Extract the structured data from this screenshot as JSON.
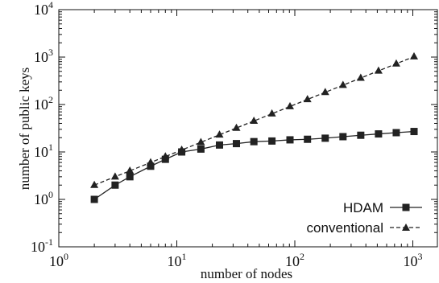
{
  "chart_data": {
    "type": "line",
    "title": "",
    "xlabel": "number of nodes",
    "ylabel": "number of public keys",
    "xscale": "log",
    "yscale": "log",
    "xlim": [
      1,
      2000
    ],
    "ylim": [
      0.1,
      10000
    ],
    "x_ticks": [
      {
        "base": "10",
        "exp": "0",
        "value": 1
      },
      {
        "base": "10",
        "exp": "1",
        "value": 10
      },
      {
        "base": "10",
        "exp": "2",
        "value": 100
      },
      {
        "base": "10",
        "exp": "3",
        "value": 1000
      }
    ],
    "y_ticks": [
      {
        "base": "10",
        "exp": "-1",
        "value": 0.1
      },
      {
        "base": "10",
        "exp": "0",
        "value": 1
      },
      {
        "base": "10",
        "exp": "1",
        "value": 10
      },
      {
        "base": "10",
        "exp": "2",
        "value": 100
      },
      {
        "base": "10",
        "exp": "3",
        "value": 1000
      },
      {
        "base": "10",
        "exp": "4",
        "value": 10000
      }
    ],
    "grid": false,
    "legend_position": "bottom-right",
    "series": [
      {
        "name": "HDAM",
        "marker": "square",
        "line_style": "solid",
        "color": "#222222",
        "x": [
          2,
          3,
          4,
          6,
          8,
          11,
          16,
          23,
          32,
          45,
          64,
          91,
          128,
          181,
          256,
          362,
          512,
          724,
          1024
        ],
        "y": [
          1.0,
          2.0,
          3.0,
          5.0,
          7.0,
          10.0,
          11.5,
          14.0,
          15.0,
          16.5,
          17.0,
          18.0,
          18.5,
          19.5,
          21.0,
          22.5,
          24.0,
          25.5,
          27.0
        ]
      },
      {
        "name": "conventional",
        "marker": "triangle",
        "line_style": "dashed",
        "color": "#222222",
        "x": [
          2,
          3,
          4,
          6,
          8,
          11,
          16,
          23,
          32,
          45,
          64,
          91,
          128,
          181,
          256,
          362,
          512,
          724,
          1024
        ],
        "y": [
          2.0,
          3.0,
          4.0,
          6.0,
          8.0,
          11.0,
          16.0,
          23.0,
          32.0,
          45.0,
          64.0,
          91.0,
          128.0,
          181.0,
          256.0,
          362.0,
          512.0,
          724.0,
          1024.0
        ]
      }
    ]
  }
}
